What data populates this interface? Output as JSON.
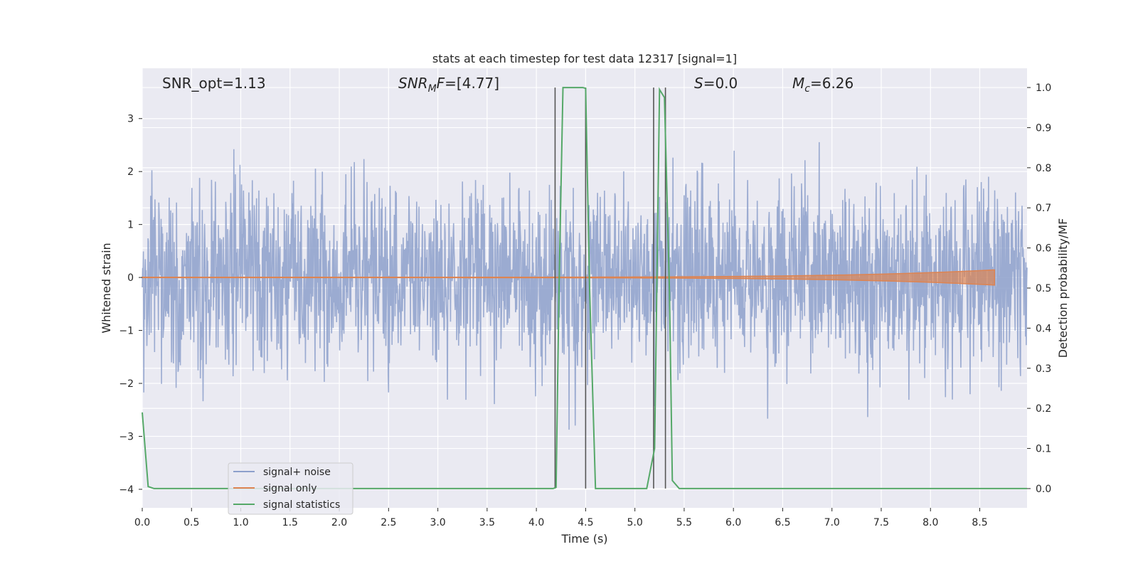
{
  "chart_data": {
    "type": "line",
    "title": "stats at each timestep for test data 12317 [signal=1]",
    "xlabel": "Time (s)",
    "ylabel": "Whitened strain",
    "ylabel_right": "Detection probability/MF",
    "xlim": [
      0.0,
      8.98
    ],
    "ylim": [
      -4.35,
      3.95
    ],
    "ylim_right": [
      -0.048,
      1.048
    ],
    "x_ticks": [
      "0.0",
      "0.5",
      "1.0",
      "1.5",
      "2.0",
      "2.5",
      "3.0",
      "3.5",
      "4.0",
      "4.5",
      "5.0",
      "5.5",
      "6.0",
      "6.5",
      "7.0",
      "7.5",
      "8.0",
      "8.5"
    ],
    "y_ticks": [
      "3",
      "2",
      "1",
      "0",
      "−1",
      "−2",
      "−3",
      "−4"
    ],
    "y_ticks_right": [
      "1.0",
      "0.9",
      "0.8",
      "0.7",
      "0.6",
      "0.5",
      "0.4",
      "0.3",
      "0.2",
      "0.1",
      "0.0"
    ],
    "grid": true,
    "legend_position": "lower-left",
    "annotations": {
      "snr_opt": "SNR_opt=1.13",
      "snr_mf_label": "SNR",
      "snr_mf_sub": "M",
      "snr_mf_rest": "F",
      "snr_mf_value": "=[4.77]",
      "s_label": "S",
      "s_value": "=0.0",
      "mc_label": "M",
      "mc_sub": "c",
      "mc_value": "=6.26"
    },
    "series": [
      {
        "name": "signal+ noise",
        "color": "#8da0cb",
        "axis": "left",
        "kind": "noise",
        "sigma": 0.85,
        "n_samples": 2300,
        "range": [
          0.0,
          8.98
        ]
      },
      {
        "name": "signal only",
        "color": "#dd8452",
        "axis": "left",
        "kind": "chirp",
        "start": 0.0,
        "end": 8.65,
        "max_amplitude": 0.14
      },
      {
        "name": "signal statistics",
        "color": "#55a868",
        "axis": "right",
        "x": [
          0.0,
          0.06,
          0.12,
          4.17,
          4.2,
          4.23,
          4.27,
          4.47,
          4.5,
          4.54,
          4.6,
          5.12,
          5.2,
          5.25,
          5.3,
          5.35,
          5.38,
          5.45,
          8.98
        ],
        "y": [
          0.19,
          0.005,
          0.0,
          0.0,
          0.003,
          0.5,
          1.0,
          1.0,
          0.998,
          0.5,
          0.0,
          0.0,
          0.1,
          0.995,
          0.975,
          0.5,
          0.02,
          0.0,
          0.0
        ]
      }
    ],
    "vertical_markers": {
      "color": "#555555",
      "lines": [
        {
          "x": 4.19,
          "y_top": 1.0,
          "y_bottom": 0.0
        },
        {
          "x": 4.5,
          "y_top": 1.0,
          "y_bottom": 0.0
        },
        {
          "x": 5.19,
          "y_top": 1.0,
          "y_bottom": 0.0
        },
        {
          "x": 5.31,
          "y_top": 1.0,
          "y_bottom": 0.0
        }
      ]
    }
  }
}
